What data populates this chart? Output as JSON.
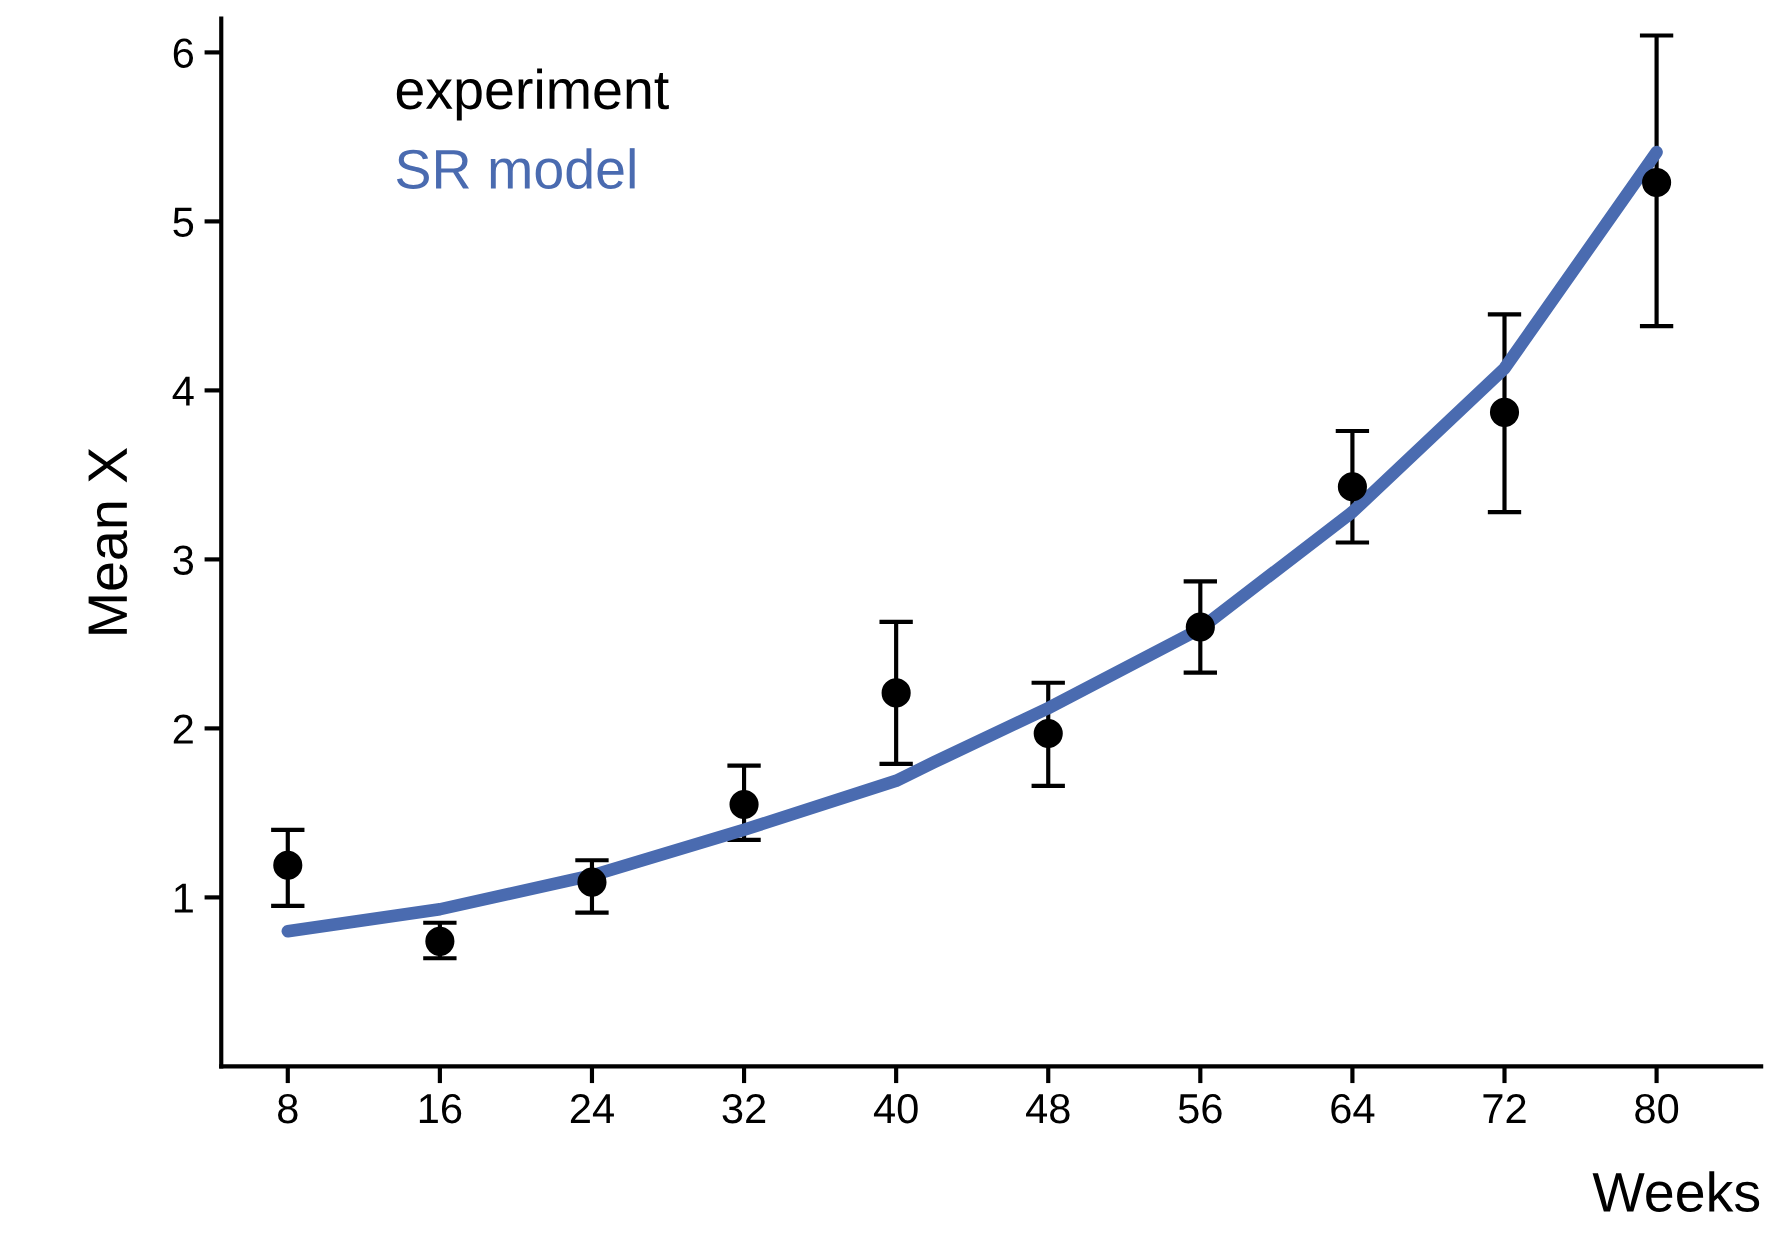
{
  "chart_data": {
    "type": "scatter",
    "xlabel": "Weeks",
    "ylabel": "Mean X",
    "xlim": [
      4.5,
      85.5
    ],
    "ylim": [
      0,
      6.2
    ],
    "xticks": [
      8,
      16,
      24,
      32,
      40,
      48,
      56,
      64,
      72,
      80
    ],
    "yticks": [
      1,
      2,
      3,
      4,
      5,
      6
    ],
    "grid": false,
    "legend": "top left",
    "series": [
      {
        "name": "experiment",
        "color": "#000000",
        "marker": "circle",
        "x": [
          8,
          16,
          24,
          32,
          40,
          48,
          56,
          64,
          72,
          80
        ],
        "values": [
          1.19,
          0.74,
          1.09,
          1.55,
          2.21,
          1.97,
          2.6,
          3.43,
          3.87,
          5.23
        ],
        "errors": [
          [
            0.95,
            1.4
          ],
          [
            0.64,
            0.85
          ],
          [
            0.91,
            1.22
          ],
          [
            1.34,
            1.78
          ],
          [
            1.79,
            2.63
          ],
          [
            1.66,
            2.27
          ],
          [
            2.33,
            2.87
          ],
          [
            3.1,
            3.76
          ],
          [
            3.28,
            4.45
          ],
          [
            4.38,
            6.1
          ]
        ]
      },
      {
        "name": "SR model",
        "type": "line",
        "color": "#4a6bb0",
        "line_style": "solid",
        "marker": "none",
        "x": [
          8,
          16,
          24,
          32,
          40,
          42,
          48,
          56,
          64,
          72,
          80
        ],
        "values": [
          0.8,
          0.93,
          1.13,
          1.4,
          1.69,
          1.8,
          2.12,
          2.59,
          3.28,
          4.13,
          5.41
        ]
      }
    ]
  }
}
